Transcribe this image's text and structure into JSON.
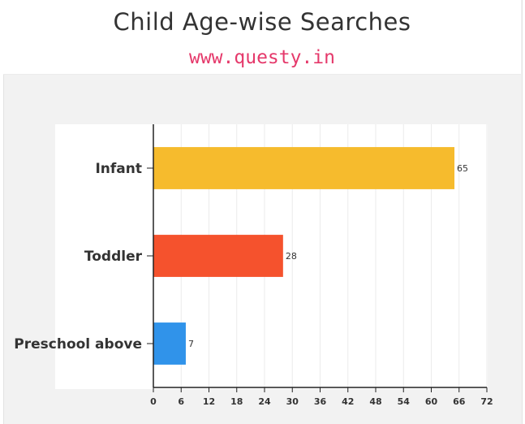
{
  "header": {
    "title": "Child Age-wise Searches",
    "subtitle": "www.questy.in"
  },
  "chart_data": {
    "type": "bar",
    "orientation": "horizontal",
    "title": "Child Age-wise Searches",
    "subtitle": "www.questy.in",
    "categories": [
      "Infant",
      "Toddler",
      "Preschool above"
    ],
    "values": [
      65,
      28,
      7
    ],
    "colors": [
      "#f6bb2d",
      "#f5522d",
      "#3093ea"
    ],
    "xlim": [
      0,
      72
    ],
    "xticks": [
      0,
      6,
      12,
      18,
      24,
      30,
      36,
      42,
      48,
      54,
      60,
      66,
      72
    ],
    "grid": true,
    "data_labels": true,
    "legend": "none"
  }
}
